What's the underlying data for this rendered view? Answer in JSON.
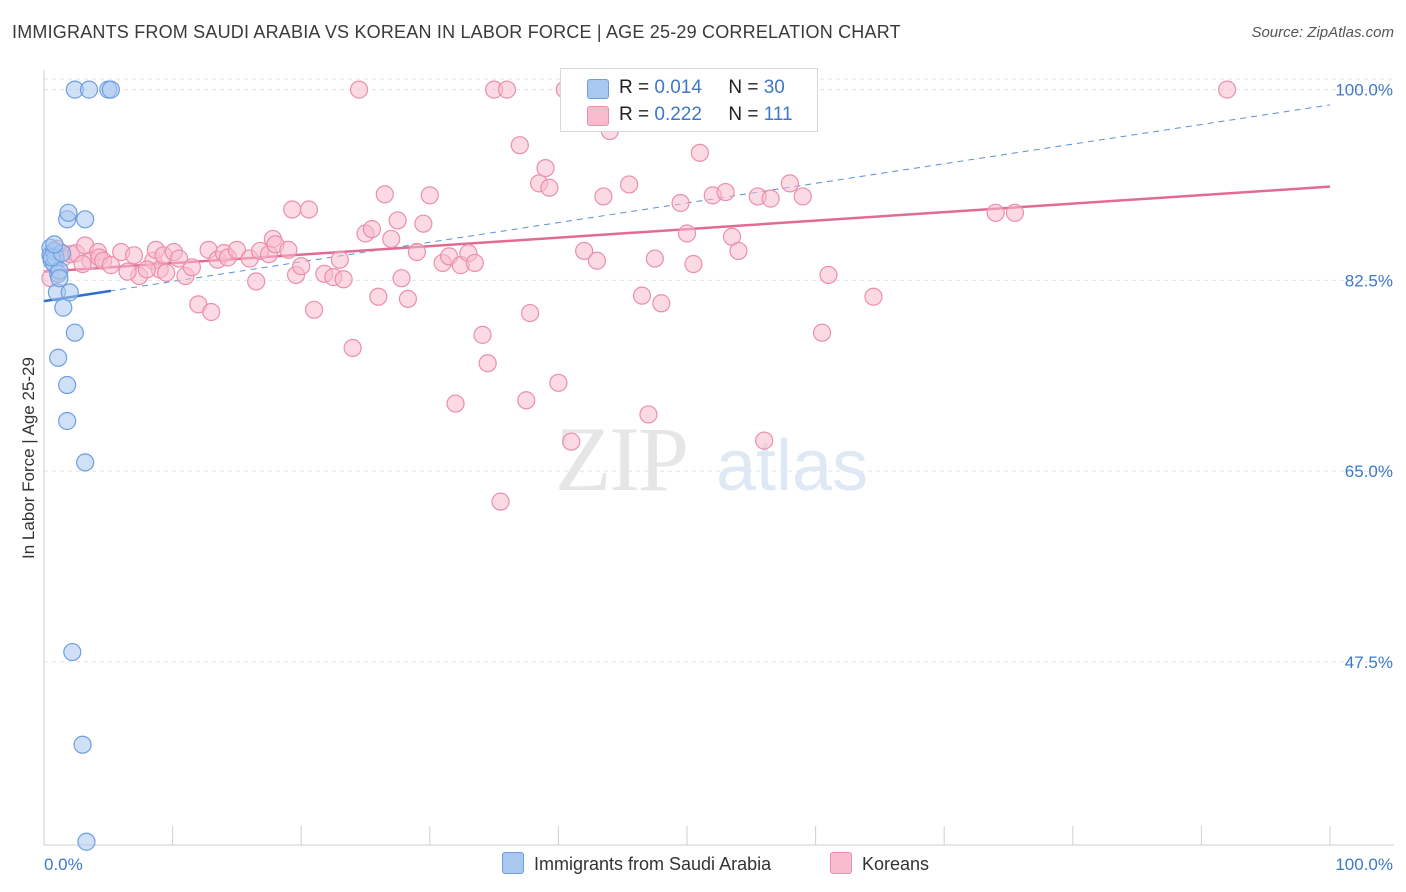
{
  "title": "IMMIGRANTS FROM SAUDI ARABIA VS KOREAN IN LABOR FORCE | AGE 25-29 CORRELATION CHART",
  "source": "Source: ZipAtlas.com",
  "watermark": {
    "zip": "ZIP",
    "atlas": "atlas"
  },
  "legend": {
    "r_label": "R =",
    "n_label": "N =",
    "rows": [
      {
        "r": "0.014",
        "n": "30",
        "fill": "#a9c8f0",
        "stroke": "#6f9ee0"
      },
      {
        "r": "0.222",
        "n": "111",
        "fill": "#f7bccd",
        "stroke": "#eb8fab"
      }
    ]
  },
  "chart_data": {
    "type": "scatter",
    "title": "IMMIGRANTS FROM SAUDI ARABIA VS KOREAN IN LABOR FORCE | AGE 25-29 CORRELATION CHART",
    "xlabel": "",
    "ylabel": "In Labor Force | Age 25-29",
    "xlim": [
      0,
      100
    ],
    "ylim": [
      30.7,
      101.8
    ],
    "x_tick_labels": [
      "0.0%",
      "100.0%"
    ],
    "y_ticks": [
      47.5,
      65.0,
      82.5,
      100.0
    ],
    "y_tick_labels": [
      "47.5%",
      "65.0%",
      "82.5%",
      "100.0%"
    ],
    "grid": true,
    "series": [
      {
        "name": "Immigrants from Saudi Arabia",
        "color": "#6f9ee0",
        "fill": "#a9c8f0",
        "points": [
          [
            0.5,
            85.5
          ],
          [
            0.5,
            84.8
          ],
          [
            0.6,
            84.3
          ],
          [
            0.8,
            84.0
          ],
          [
            0.8,
            85.2
          ],
          [
            0.9,
            84.6
          ],
          [
            1.1,
            83.1
          ],
          [
            1.2,
            83.4
          ],
          [
            1.0,
            81.4
          ],
          [
            1.5,
            80.0
          ],
          [
            1.8,
            88.1
          ],
          [
            1.9,
            88.7
          ],
          [
            2.0,
            81.4
          ],
          [
            2.4,
            77.7
          ],
          [
            1.1,
            75.4
          ],
          [
            1.8,
            72.9
          ],
          [
            1.8,
            69.6
          ],
          [
            3.2,
            88.1
          ],
          [
            3.2,
            65.8
          ],
          [
            2.4,
            100.0
          ],
          [
            3.5,
            100.0
          ],
          [
            5.0,
            100.0
          ],
          [
            5.2,
            100.0
          ],
          [
            2.2,
            48.4
          ],
          [
            3.0,
            39.9
          ],
          [
            3.3,
            31.0
          ],
          [
            0.6,
            84.6
          ],
          [
            1.2,
            82.7
          ],
          [
            1.4,
            85.0
          ],
          [
            0.8,
            85.8
          ]
        ],
        "trend": {
          "x0": 0,
          "y0": 80.6,
          "x1": 100,
          "y1": 98.6,
          "solid_until_x": 5.2
        }
      },
      {
        "name": "Koreans",
        "color": "#eb8fab",
        "fill": "#f7bccd",
        "points": [
          [
            0.5,
            82.7
          ],
          [
            1.0,
            85.4
          ],
          [
            1.5,
            84.6
          ],
          [
            2.1,
            84.9
          ],
          [
            2.5,
            85.0
          ],
          [
            3.2,
            85.7
          ],
          [
            3.6,
            84.3
          ],
          [
            4.2,
            85.1
          ],
          [
            4.3,
            84.6
          ],
          [
            4.6,
            84.3
          ],
          [
            5.2,
            83.9
          ],
          [
            6.0,
            85.1
          ],
          [
            7.0,
            84.8
          ],
          [
            7.4,
            82.9
          ],
          [
            8.5,
            84.3
          ],
          [
            8.7,
            85.3
          ],
          [
            9.0,
            83.5
          ],
          [
            9.3,
            84.8
          ],
          [
            9.5,
            83.2
          ],
          [
            10.1,
            85.1
          ],
          [
            10.5,
            84.5
          ],
          [
            11.0,
            82.9
          ],
          [
            11.5,
            83.7
          ],
          [
            12.0,
            80.3
          ],
          [
            12.8,
            85.3
          ],
          [
            13.0,
            79.6
          ],
          [
            13.5,
            84.4
          ],
          [
            14.0,
            85.0
          ],
          [
            14.3,
            84.6
          ],
          [
            15.0,
            85.3
          ],
          [
            16.0,
            84.5
          ],
          [
            16.5,
            82.4
          ],
          [
            16.8,
            85.2
          ],
          [
            17.5,
            84.9
          ],
          [
            17.8,
            86.3
          ],
          [
            18.0,
            85.8
          ],
          [
            19.0,
            85.3
          ],
          [
            19.3,
            89.0
          ],
          [
            19.6,
            83.0
          ],
          [
            20.0,
            83.8
          ],
          [
            20.6,
            89.0
          ],
          [
            21.0,
            79.8
          ],
          [
            21.8,
            83.1
          ],
          [
            22.5,
            82.8
          ],
          [
            23.0,
            84.4
          ],
          [
            23.3,
            82.6
          ],
          [
            24.0,
            76.3
          ],
          [
            24.5,
            100.0
          ],
          [
            25.0,
            86.8
          ],
          [
            25.5,
            87.2
          ],
          [
            26.0,
            81.0
          ],
          [
            26.5,
            90.4
          ],
          [
            27.0,
            86.3
          ],
          [
            27.5,
            88.0
          ],
          [
            27.8,
            82.7
          ],
          [
            28.3,
            80.8
          ],
          [
            29.0,
            85.1
          ],
          [
            29.5,
            87.7
          ],
          [
            30.0,
            90.3
          ],
          [
            31.0,
            84.1
          ],
          [
            31.5,
            84.7
          ],
          [
            32.0,
            71.2
          ],
          [
            32.4,
            83.9
          ],
          [
            33.0,
            85.0
          ],
          [
            33.5,
            84.1
          ],
          [
            34.1,
            77.5
          ],
          [
            34.5,
            74.9
          ],
          [
            35.0,
            100.0
          ],
          [
            35.5,
            62.2
          ],
          [
            36.0,
            100.0
          ],
          [
            37.0,
            94.9
          ],
          [
            37.5,
            71.5
          ],
          [
            37.8,
            79.5
          ],
          [
            38.5,
            91.4
          ],
          [
            39.0,
            92.8
          ],
          [
            39.3,
            91.0
          ],
          [
            40.0,
            73.1
          ],
          [
            40.5,
            100.0
          ],
          [
            41.0,
            67.7
          ],
          [
            42.0,
            85.2
          ],
          [
            43.0,
            84.3
          ],
          [
            43.5,
            90.2
          ],
          [
            44.0,
            96.2
          ],
          [
            45.5,
            91.3
          ],
          [
            46.5,
            81.1
          ],
          [
            47.0,
            70.2
          ],
          [
            47.5,
            84.5
          ],
          [
            48.0,
            80.4
          ],
          [
            49.5,
            89.6
          ],
          [
            50.0,
            86.8
          ],
          [
            50.5,
            84.0
          ],
          [
            51.0,
            94.2
          ],
          [
            52.0,
            90.3
          ],
          [
            53.0,
            90.6
          ],
          [
            53.5,
            86.5
          ],
          [
            54.0,
            85.2
          ],
          [
            55.5,
            90.2
          ],
          [
            56.0,
            67.8
          ],
          [
            56.5,
            90.0
          ],
          [
            58.0,
            91.4
          ],
          [
            58.5,
            100.0
          ],
          [
            59.0,
            90.2
          ],
          [
            60.5,
            77.7
          ],
          [
            61.0,
            83.0
          ],
          [
            64.5,
            81.0
          ],
          [
            74.0,
            88.7
          ],
          [
            75.5,
            88.7
          ],
          [
            92.0,
            100.0
          ],
          [
            3.0,
            84.0
          ],
          [
            6.5,
            83.3
          ],
          [
            8.0,
            83.5
          ]
        ],
        "trend": {
          "x0": 0,
          "y0": 83.3,
          "x1": 100,
          "y1": 91.1
        }
      }
    ]
  },
  "bottom_legend": [
    "Immigrants from Saudi Arabia",
    "Koreans"
  ]
}
